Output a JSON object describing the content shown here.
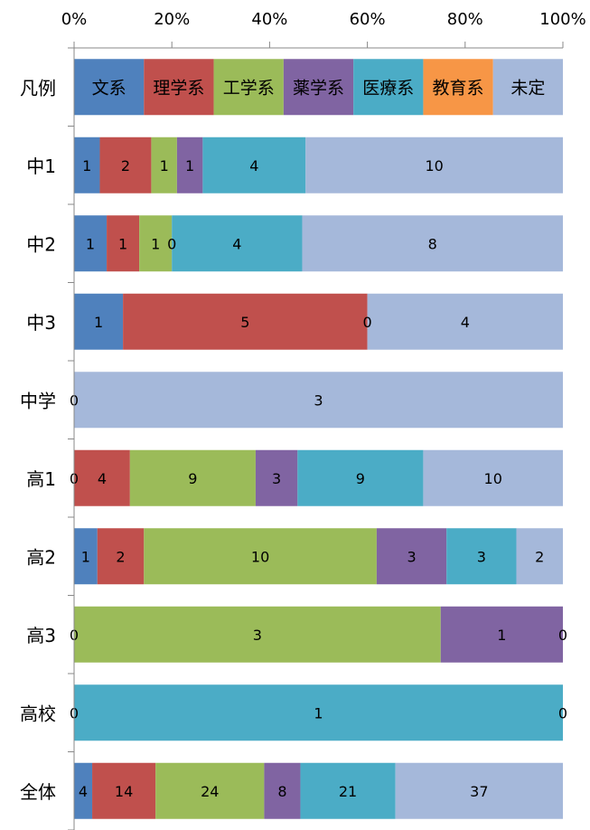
{
  "chart_data": {
    "type": "bar",
    "orientation": "horizontal",
    "stacking": "percent",
    "x_ticks": [
      "0%",
      "20%",
      "40%",
      "60%",
      "80%",
      "100%"
    ],
    "xlim": [
      0,
      100
    ],
    "grid": false,
    "categories": [
      "凡例",
      "中1",
      "中2",
      "中3",
      "中学",
      "高1",
      "高2",
      "高3",
      "高校",
      "全体"
    ],
    "series": [
      {
        "name": "文系",
        "color": "#4F81BD",
        "values": [
          1,
          1,
          1,
          1,
          0,
          0,
          1,
          0,
          0,
          4
        ]
      },
      {
        "name": "理学系",
        "color": "#C0504D",
        "values": [
          1,
          2,
          1,
          5,
          0,
          4,
          2,
          0,
          0,
          14
        ]
      },
      {
        "name": "工学系",
        "color": "#9BBB59",
        "values": [
          1,
          1,
          1,
          0,
          0,
          9,
          10,
          3,
          0,
          24
        ]
      },
      {
        "name": "薬学系",
        "color": "#8064A2",
        "values": [
          1,
          1,
          0,
          0,
          0,
          3,
          3,
          1,
          0,
          8
        ]
      },
      {
        "name": "医療系",
        "color": "#4BACC6",
        "values": [
          1,
          4,
          4,
          0,
          0,
          9,
          3,
          0,
          1,
          21
        ]
      },
      {
        "name": "教育系",
        "color": "#F79646",
        "values": [
          1,
          0,
          0,
          0,
          0,
          0,
          0,
          0,
          0,
          0
        ]
      },
      {
        "name": "未定",
        "color": "#A5B8DA",
        "values": [
          1,
          10,
          8,
          4,
          3,
          10,
          2,
          0,
          0,
          37
        ]
      }
    ],
    "legend_row": "凡例",
    "labels": [
      [
        "文系",
        "理学系",
        "工学系",
        "薬学系",
        "医療系",
        "教育系",
        "未定"
      ],
      [
        "1",
        "2",
        "1",
        "1",
        "4",
        "",
        "10"
      ],
      [
        "1",
        "1",
        "1",
        "0",
        "4",
        "",
        "8"
      ],
      [
        "1",
        "5",
        "",
        "0",
        "",
        "",
        "4"
      ],
      [
        "0",
        "",
        "",
        "",
        "",
        "",
        "3"
      ],
      [
        "0",
        "4",
        "9",
        "3",
        "9",
        "",
        "10"
      ],
      [
        "1",
        "2",
        "10",
        "3",
        "3",
        "",
        "2"
      ],
      [
        "0",
        "",
        "3",
        "1",
        "",
        "",
        "0"
      ],
      [
        "0",
        "",
        "",
        "",
        "1",
        "",
        "0"
      ],
      [
        "4",
        "14",
        "24",
        "8",
        "21",
        "",
        "37"
      ]
    ]
  }
}
